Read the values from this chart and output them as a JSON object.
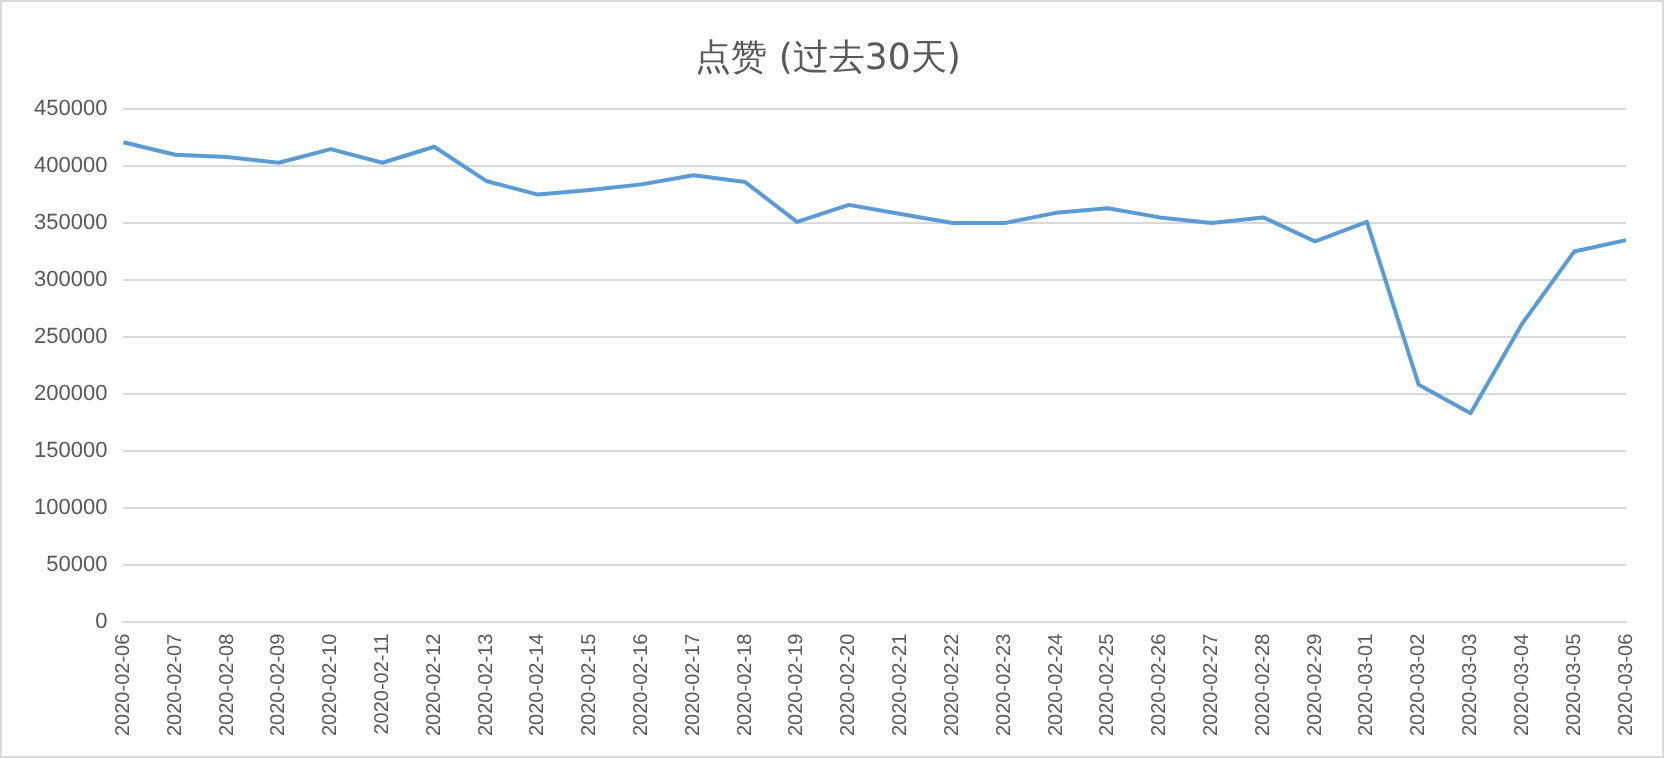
{
  "chart_data": {
    "type": "line",
    "title": "点赞 (过去30天)",
    "categories": [
      "2020-02-06",
      "2020-02-07",
      "2020-02-08",
      "2020-02-09",
      "2020-02-10",
      "2020-02-11",
      "2020-02-12",
      "2020-02-13",
      "2020-02-14",
      "2020-02-15",
      "2020-02-16",
      "2020-02-17",
      "2020-02-18",
      "2020-02-19",
      "2020-02-20",
      "2020-02-21",
      "2020-02-22",
      "2020-02-23",
      "2020-02-24",
      "2020-02-25",
      "2020-02-26",
      "2020-02-27",
      "2020-02-28",
      "2020-02-29",
      "2020-03-01",
      "2020-03-02",
      "2020-03-03",
      "2020-03-04",
      "2020-03-05",
      "2020-03-06"
    ],
    "series": [
      {
        "color": "#5b9bd5",
        "values": [
          421000,
          410000,
          408000,
          403000,
          415000,
          403000,
          417000,
          387000,
          375000,
          379000,
          384000,
          392000,
          386000,
          351000,
          366000,
          358000,
          350000,
          350000,
          359000,
          363000,
          355000,
          350000,
          355000,
          334000,
          351000,
          208000,
          183000,
          262000,
          325000,
          335000
        ]
      }
    ],
    "ylim": [
      0,
      450000
    ],
    "yticks": [
      0,
      50000,
      100000,
      150000,
      200000,
      250000,
      300000,
      350000,
      400000,
      450000
    ],
    "grid": "y",
    "legend": false,
    "marker": "none",
    "line_style": "solid"
  }
}
